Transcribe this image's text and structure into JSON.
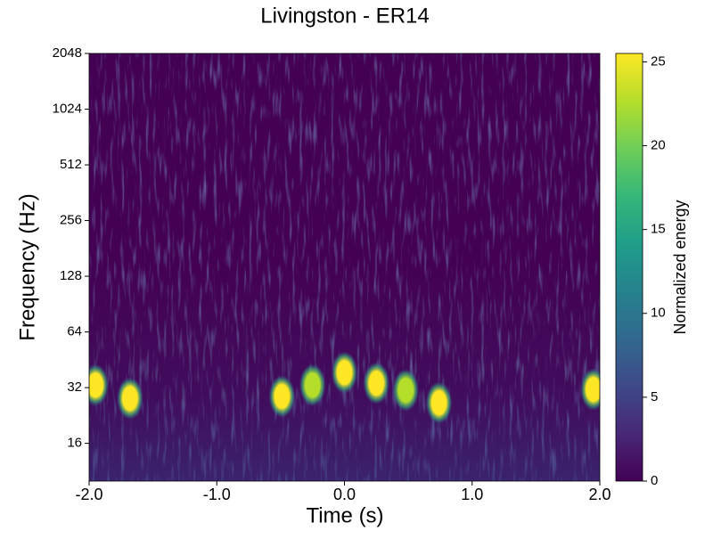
{
  "chart_data": {
    "type": "spectrogram",
    "title": "Livingston - ER14",
    "x_label": "Time (s)",
    "y_label": "Frequency (Hz)",
    "colorbar_label": "Normalized energy",
    "colormap": "viridis",
    "y_scale": "log2",
    "x": [
      -1.95,
      -1.68,
      -0.49,
      -0.25,
      0.0,
      0.25,
      0.48,
      0.74,
      1.95
    ],
    "y": [
      33,
      28,
      28.7,
      33,
      38.6,
      33.8,
      31,
      26.5,
      31.3
    ],
    "values": [
      25.5,
      25.5,
      25.5,
      23,
      25.5,
      25.5,
      22,
      25.5,
      25.5
    ],
    "xlim": [
      -2,
      2
    ],
    "xticks": [
      {
        "value": -2,
        "label": "-2.0"
      },
      {
        "value": -1,
        "label": "-1.0"
      },
      {
        "value": 0,
        "label": "0.0"
      },
      {
        "value": 1,
        "label": "1.0"
      },
      {
        "value": 2,
        "label": "2.0"
      }
    ],
    "ylim": [
      10,
      2048
    ],
    "yticks": [
      16,
      32,
      64,
      128,
      256,
      512,
      1024,
      2048
    ],
    "clim": [
      0,
      25.5
    ],
    "cticks": [
      0,
      5,
      10,
      15,
      20,
      25
    ]
  }
}
